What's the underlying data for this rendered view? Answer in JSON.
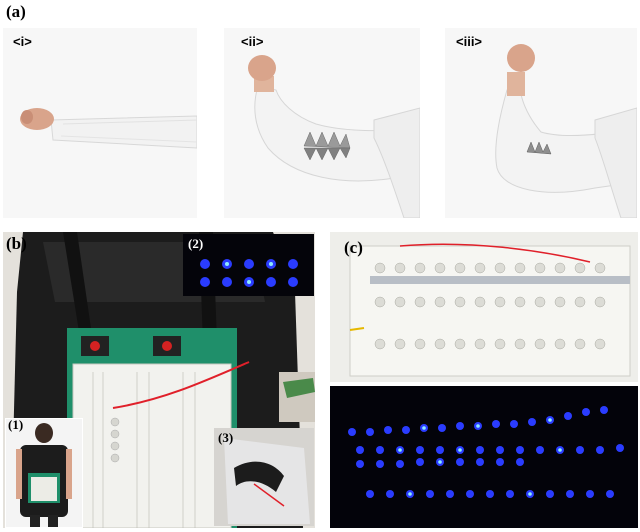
{
  "panels": {
    "a": {
      "label": "(a)",
      "sub": [
        "<i>",
        "<ii>",
        "<iii>"
      ]
    },
    "b": {
      "label": "(b)",
      "insets": [
        "(1)",
        "(2)",
        "(3)"
      ]
    },
    "c": {
      "label": "(c)"
    }
  },
  "colors": {
    "led_blue": "#2a3cff",
    "led_cyan": "#7fe6ff",
    "breadboard": "#f2f2ee",
    "board_green": "#1f8f6a",
    "wire_red": "#e0202a",
    "sleeve_white": "#f4f4f4",
    "backpack_black": "#1a1a1a"
  }
}
